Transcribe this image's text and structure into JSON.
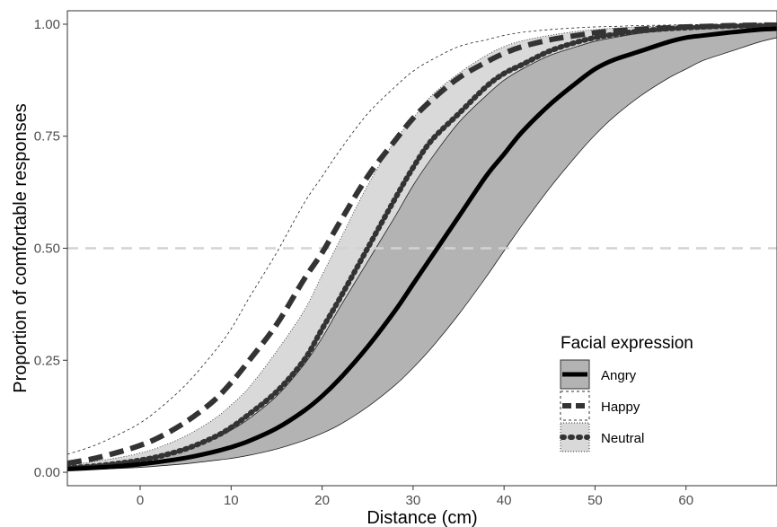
{
  "chart_data": {
    "type": "line",
    "title": "",
    "xlabel": "Distance (cm)",
    "ylabel": "Proportion of comfortable responses",
    "xlim": [
      -8,
      70
    ],
    "ylim": [
      -0.03,
      1.03
    ],
    "x_ticks": [
      0,
      10,
      20,
      30,
      40,
      50,
      60
    ],
    "x_tick_labels": [
      "0",
      "10",
      "20",
      "30",
      "40",
      "50",
      "60"
    ],
    "y_ticks": [
      0,
      0.25,
      0.5,
      0.75,
      1
    ],
    "y_tick_labels": [
      "0.00",
      "0.25",
      "0.50",
      "0.75",
      "1.00"
    ],
    "grid": false,
    "reference_line": {
      "y": 0.5,
      "style": "dashed",
      "color": "#d3d3d3"
    },
    "x": [
      -8,
      -5,
      -2,
      0,
      2,
      5,
      8,
      10,
      12,
      15,
      18,
      20,
      22,
      25,
      28,
      30,
      32,
      35,
      38,
      40,
      42,
      45,
      48,
      50,
      52,
      55,
      58,
      60,
      62,
      65,
      68,
      70
    ],
    "legend": {
      "title": "Facial expression",
      "placement": "bottom-right"
    },
    "series": [
      {
        "name": "Angry",
        "line_style": "solid",
        "line_color": "#000000",
        "ribbon_fill": "#b3b3b3",
        "ribbon_border": "solid",
        "center": [
          0.007,
          0.01,
          0.014,
          0.018,
          0.023,
          0.032,
          0.045,
          0.056,
          0.07,
          0.098,
          0.137,
          0.17,
          0.21,
          0.28,
          0.36,
          0.42,
          0.48,
          0.57,
          0.66,
          0.71,
          0.76,
          0.82,
          0.87,
          0.9,
          0.92,
          0.94,
          0.96,
          0.97,
          0.975,
          0.982,
          0.988,
          0.99
        ],
        "lower": [
          0.005,
          0.007,
          0.009,
          0.011,
          0.014,
          0.019,
          0.026,
          0.031,
          0.038,
          0.052,
          0.071,
          0.087,
          0.107,
          0.146,
          0.194,
          0.233,
          0.277,
          0.352,
          0.435,
          0.494,
          0.552,
          0.634,
          0.708,
          0.753,
          0.792,
          0.84,
          0.879,
          0.9,
          0.92,
          0.94,
          0.96,
          0.97
        ],
        "upper": [
          0.009,
          0.013,
          0.019,
          0.025,
          0.033,
          0.05,
          0.074,
          0.094,
          0.12,
          0.17,
          0.24,
          0.3,
          0.37,
          0.47,
          0.57,
          0.64,
          0.7,
          0.78,
          0.84,
          0.875,
          0.9,
          0.93,
          0.95,
          0.962,
          0.97,
          0.98,
          0.986,
          0.99,
          0.992,
          0.995,
          0.997,
          0.998
        ]
      },
      {
        "name": "Happy",
        "line_style": "longdash",
        "line_color": "#333333",
        "ribbon_fill": "#ffffff",
        "ribbon_border": "dashed",
        "center": [
          0.02,
          0.031,
          0.047,
          0.06,
          0.077,
          0.112,
          0.158,
          0.2,
          0.25,
          0.33,
          0.43,
          0.49,
          0.56,
          0.66,
          0.74,
          0.79,
          0.83,
          0.88,
          0.915,
          0.935,
          0.95,
          0.965,
          0.975,
          0.981,
          0.985,
          0.989,
          0.992,
          0.994,
          0.995,
          0.997,
          0.998,
          0.998
        ],
        "lower": [
          0.01,
          0.016,
          0.024,
          0.031,
          0.04,
          0.06,
          0.088,
          0.113,
          0.145,
          0.2,
          0.275,
          0.33,
          0.39,
          0.49,
          0.58,
          0.64,
          0.7,
          0.77,
          0.83,
          0.86,
          0.89,
          0.92,
          0.94,
          0.95,
          0.96,
          0.97,
          0.978,
          0.982,
          0.986,
          0.99,
          0.993,
          0.994
        ],
        "upper": [
          0.04,
          0.06,
          0.088,
          0.11,
          0.14,
          0.195,
          0.265,
          0.32,
          0.39,
          0.49,
          0.6,
          0.66,
          0.72,
          0.8,
          0.86,
          0.895,
          0.92,
          0.95,
          0.965,
          0.975,
          0.982,
          0.988,
          0.992,
          0.994,
          0.995,
          0.997,
          0.998,
          0.999,
          0.999,
          0.999,
          0.999,
          0.999
        ]
      },
      {
        "name": "Neutral",
        "line_style": "dotted",
        "line_color": "#333333",
        "ribbon_fill": "#d9d9d9",
        "ribbon_border": "dotted",
        "center": [
          0.01,
          0.014,
          0.021,
          0.027,
          0.035,
          0.052,
          0.077,
          0.1,
          0.13,
          0.18,
          0.25,
          0.32,
          0.39,
          0.5,
          0.61,
          0.68,
          0.74,
          0.8,
          0.86,
          0.89,
          0.91,
          0.94,
          0.96,
          0.97,
          0.977,
          0.985,
          0.99,
          0.992,
          0.994,
          0.996,
          0.997,
          0.998
        ],
        "lower": [
          0.006,
          0.009,
          0.013,
          0.017,
          0.022,
          0.033,
          0.049,
          0.062,
          0.08,
          0.113,
          0.157,
          0.205,
          0.255,
          0.34,
          0.43,
          0.5,
          0.56,
          0.65,
          0.73,
          0.77,
          0.81,
          0.86,
          0.9,
          0.92,
          0.94,
          0.96,
          0.972,
          0.978,
          0.983,
          0.988,
          0.992,
          0.994
        ],
        "upper": [
          0.016,
          0.024,
          0.034,
          0.043,
          0.055,
          0.081,
          0.117,
          0.15,
          0.19,
          0.27,
          0.36,
          0.44,
          0.52,
          0.64,
          0.74,
          0.79,
          0.84,
          0.89,
          0.93,
          0.95,
          0.963,
          0.975,
          0.984,
          0.988,
          0.991,
          0.994,
          0.996,
          0.997,
          0.998,
          0.998,
          0.999,
          0.999
        ]
      }
    ]
  }
}
